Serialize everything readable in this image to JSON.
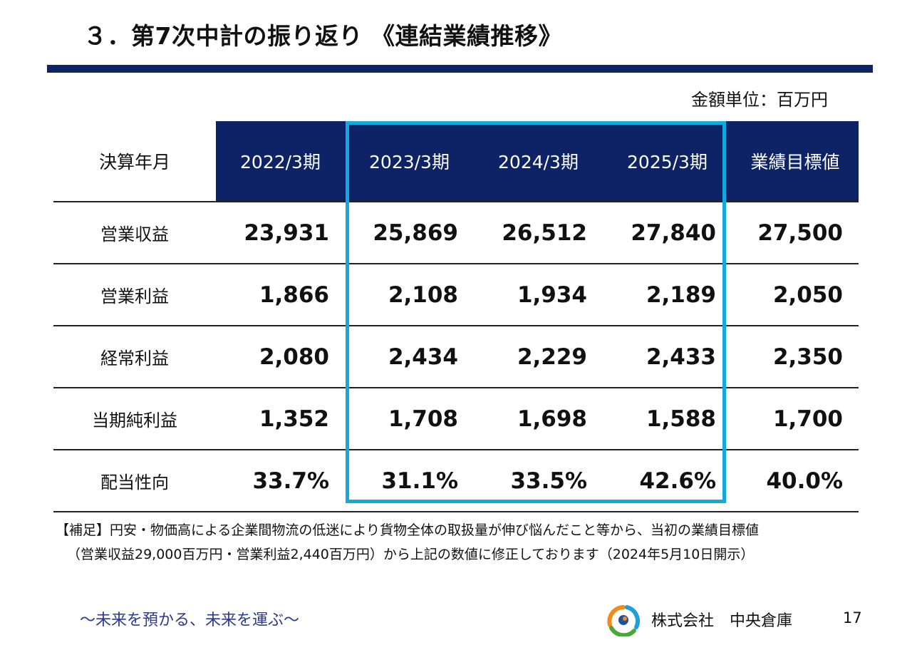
{
  "slide": {
    "title": "３．第7次中計の振り返り 《連結業績推移》",
    "unit_label": "金額単位：百万円",
    "page_number": "17"
  },
  "colors": {
    "navy": "#0d2366",
    "highlight": "#12a8e0",
    "tagline": "#2a3a8c"
  },
  "table": {
    "columns": [
      "決算年月",
      "2022/3期",
      "2023/3期",
      "2024/3期",
      "2025/3期",
      "業績目標値"
    ],
    "rows": [
      {
        "label": "営業収益",
        "values": [
          "23,931",
          "25,869",
          "26,512",
          "27,840",
          "27,500"
        ]
      },
      {
        "label": "営業利益",
        "values": [
          "1,866",
          "2,108",
          "1,934",
          "2,189",
          "2,050"
        ]
      },
      {
        "label": "経常利益",
        "values": [
          "2,080",
          "2,434",
          "2,229",
          "2,433",
          "2,350"
        ]
      },
      {
        "label": "当期純利益",
        "values": [
          "1,352",
          "1,708",
          "1,698",
          "1,588",
          "1,700"
        ]
      },
      {
        "label": "配当性向",
        "values": [
          "33.7%",
          "31.1%",
          "33.5%",
          "42.6%",
          "40.0%"
        ]
      }
    ],
    "highlight_columns": [
      "2023/3期",
      "2024/3期",
      "2025/3期"
    ]
  },
  "note": {
    "line1": "【補足】円安・物価高による企業間物流の低迷により貨物全体の取扱量が伸び悩んだこと等から、当初の業績目標値",
    "line2": "（営業収益29,000百万円・営業利益2,440百万円）から上記の数値に修正しております（2024年5月10日開示）"
  },
  "footer": {
    "tagline": "～未来を預かる、未来を運ぶ～",
    "company": "株式会社　中央倉庫",
    "logo_icon": "company-logo-icon"
  }
}
